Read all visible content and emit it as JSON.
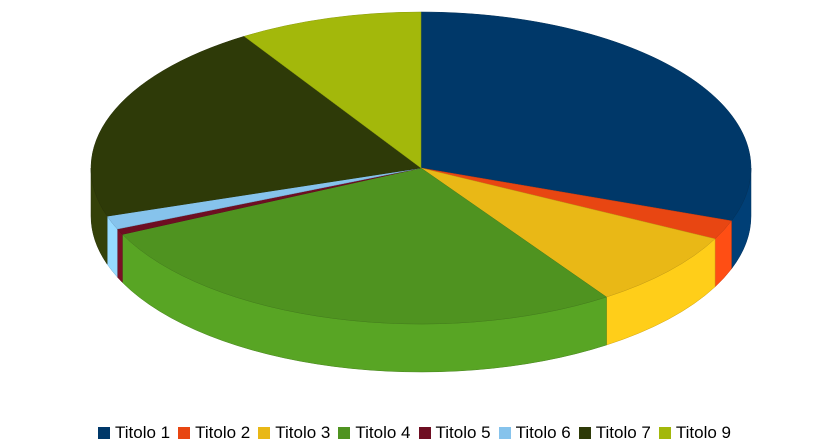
{
  "chart_data": {
    "type": "pie",
    "style": "3d-tilted",
    "legend_position": "bottom",
    "slices": [
      {
        "label": "Titolo 1",
        "value": 30.5,
        "color": "#003869"
      },
      {
        "label": "Titolo 2",
        "value": 2.0,
        "color": "#e84612"
      },
      {
        "label": "Titolo 3",
        "value": 8.0,
        "color": "#e9b816"
      },
      {
        "label": "Titolo 4",
        "value": 27.5,
        "color": "#4f9320"
      },
      {
        "label": "Titolo 5",
        "value": 0.6,
        "color": "#6e0e22"
      },
      {
        "label": "Titolo 6",
        "value": 1.4,
        "color": "#86c3ec"
      },
      {
        "label": "Titolo 7",
        "value": 21.0,
        "color": "#2e3a08"
      },
      {
        "label": "Titolo 9",
        "value": 9.0,
        "color": "#a3b80b"
      }
    ]
  }
}
